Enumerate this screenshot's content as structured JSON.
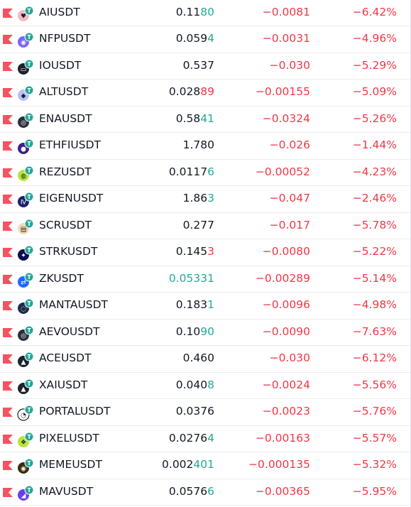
{
  "colors": {
    "up": "#22ab94",
    "down": "#f23645",
    "flag": "#f7525f",
    "text": "#131722"
  },
  "expand_glyph": "›",
  "rows": [
    {
      "symbol": "AIUSDT",
      "price_base": "0.11",
      "price_tail": "80",
      "tail_dir": "up",
      "price_dir": "",
      "change": "−0.0081",
      "percent": "−6.42%",
      "icon_color": "#f6b8c5",
      "icon_glyph": "♥"
    },
    {
      "symbol": "NFPUSDT",
      "price_base": "0.059",
      "price_tail": "4",
      "tail_dir": "up",
      "price_dir": "",
      "change": "−0.0031",
      "percent": "−4.96%",
      "icon_color": "#7b61ff",
      "icon_glyph": "◉"
    },
    {
      "symbol": "IOUSDT",
      "price_base": "0.537",
      "price_tail": "",
      "tail_dir": "",
      "price_dir": "",
      "change": "−0.030",
      "percent": "−5.29%",
      "icon_color": "#1e222d",
      "icon_glyph": "▭"
    },
    {
      "symbol": "ALTUSDT",
      "price_base": "0.028",
      "price_tail": "89",
      "tail_dir": "down",
      "price_dir": "",
      "change": "−0.00155",
      "percent": "−5.09%",
      "icon_color": "#b8c0ff",
      "icon_glyph": "◆"
    },
    {
      "symbol": "ENAUSDT",
      "price_base": "0.58",
      "price_tail": "41",
      "tail_dir": "up",
      "price_dir": "",
      "change": "−0.0324",
      "percent": "−5.26%",
      "icon_color": "#2a2e39",
      "icon_glyph": "◎"
    },
    {
      "symbol": "ETHFIUSDT",
      "price_base": "1.780",
      "price_tail": "",
      "tail_dir": "",
      "price_dir": "",
      "change": "−0.026",
      "percent": "−1.44%",
      "icon_color": "#3b1e8a",
      "icon_glyph": "●"
    },
    {
      "symbol": "REZUSDT",
      "price_base": "0.0117",
      "price_tail": "6",
      "tail_dir": "up",
      "price_dir": "",
      "change": "−0.00052",
      "percent": "−4.23%",
      "icon_color": "#b6e63a",
      "icon_glyph": "◍"
    },
    {
      "symbol": "EIGENUSDT",
      "price_base": "1.86",
      "price_tail": "3",
      "tail_dir": "up",
      "price_dir": "",
      "change": "−0.047",
      "percent": "−2.46%",
      "icon_color": "#1a1f6d",
      "icon_glyph": "Ⅳ"
    },
    {
      "symbol": "SCRUSDT",
      "price_base": "0.277",
      "price_tail": "",
      "tail_dir": "",
      "price_dir": "",
      "change": "−0.017",
      "percent": "−5.78%",
      "icon_color": "#f4d8b0",
      "icon_glyph": "▤"
    },
    {
      "symbol": "STRKUSDT",
      "price_base": "0.145",
      "price_tail": "3",
      "tail_dir": "down",
      "price_dir": "",
      "change": "−0.0080",
      "percent": "−5.22%",
      "icon_color": "#0c0c4f",
      "icon_glyph": "✦"
    },
    {
      "symbol": "ZKUSDT",
      "price_base": "0.05331",
      "price_tail": "",
      "tail_dir": "",
      "price_dir": "up",
      "change": "−0.00289",
      "percent": "−5.14%",
      "icon_color": "#1e69ff",
      "icon_glyph": "⇄"
    },
    {
      "symbol": "MANTAUSDT",
      "price_base": "0.183",
      "price_tail": "1",
      "tail_dir": "up",
      "price_dir": "",
      "change": "−0.0096",
      "percent": "−4.98%",
      "icon_color": "#1c2b4a",
      "icon_glyph": "◌"
    },
    {
      "symbol": "AEVOUSDT",
      "price_base": "0.10",
      "price_tail": "90",
      "tail_dir": "up",
      "price_dir": "",
      "change": "−0.0090",
      "percent": "−7.63%",
      "icon_color": "#2a2e39",
      "icon_glyph": "◎"
    },
    {
      "symbol": "ACEUSDT",
      "price_base": "0.460",
      "price_tail": "",
      "tail_dir": "",
      "price_dir": "",
      "change": "−0.030",
      "percent": "−6.12%",
      "icon_color": "#1e222d",
      "icon_glyph": "▲"
    },
    {
      "symbol": "XAIUSDT",
      "price_base": "0.040",
      "price_tail": "8",
      "tail_dir": "up",
      "price_dir": "",
      "change": "−0.0024",
      "percent": "−5.56%",
      "icon_color": "#1e222d",
      "icon_glyph": "▲"
    },
    {
      "symbol": "PORTALUSDT",
      "price_base": "0.0376",
      "price_tail": "",
      "tail_dir": "",
      "price_dir": "",
      "change": "−0.0023",
      "percent": "−5.76%",
      "icon_color": "#ffffff",
      "icon_glyph": "◔"
    },
    {
      "symbol": "PIXELUSDT",
      "price_base": "0.0276",
      "price_tail": "4",
      "tail_dir": "up",
      "price_dir": "",
      "change": "−0.00163",
      "percent": "−5.57%",
      "icon_color": "#b6e63a",
      "icon_glyph": "❖"
    },
    {
      "symbol": "MEMEUSDT",
      "price_base": "0.002",
      "price_tail": "401",
      "tail_dir": "up",
      "price_dir": "",
      "change": "−0.000135",
      "percent": "−5.32%",
      "icon_color": "#3a2a10",
      "icon_glyph": "◉"
    },
    {
      "symbol": "MAVUSDT",
      "price_base": "0.0576",
      "price_tail": "6",
      "tail_dir": "up",
      "price_dir": "",
      "change": "−0.00365",
      "percent": "−5.95%",
      "icon_color": "#6a3ef0",
      "icon_glyph": "◢"
    }
  ]
}
